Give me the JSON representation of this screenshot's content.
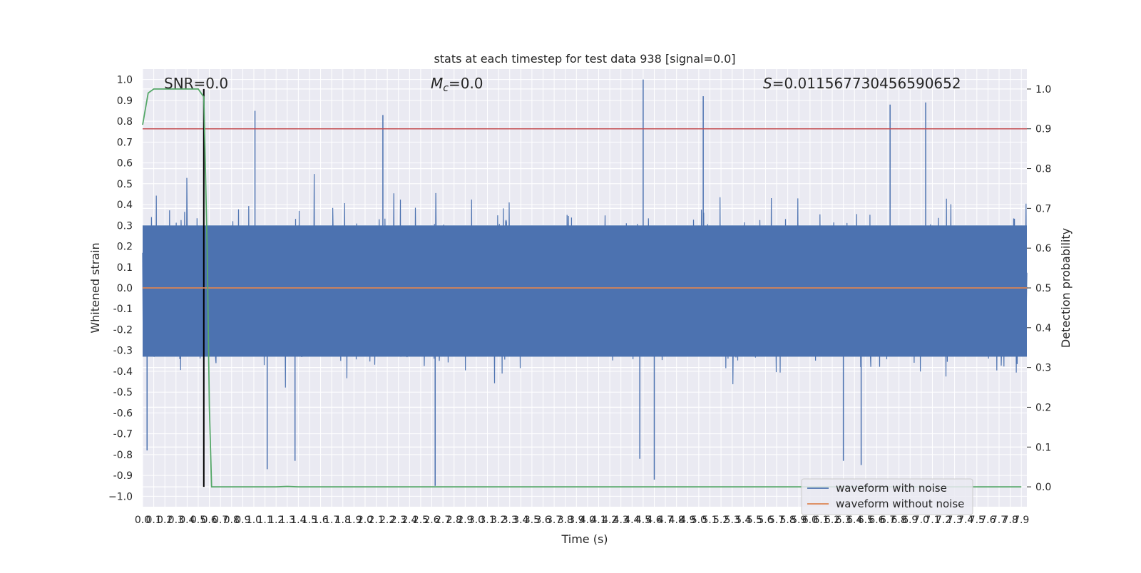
{
  "chart_data": {
    "type": "line",
    "title": "stats at each timestep for test data 938 [signal=0.0]",
    "xlabel": "Time (s)",
    "ylabel": "Whitened strain",
    "ylabel_right": "Detection probability",
    "xlim": [
      0.0,
      7.95
    ],
    "ylim": [
      -1.05,
      1.05
    ],
    "ylim_right": [
      -0.05,
      1.05
    ],
    "grid": true,
    "legend_position": "lower right",
    "annotations": {
      "snr": "SNR=0.0",
      "mc_symbol": "M",
      "mc_subscript": "c",
      "mc_value": "=0.0",
      "s_symbol": "S",
      "s_value": "=0.011567730456590652"
    },
    "x_ticks": [
      "0.0",
      "0.1",
      "0.2",
      "0.3",
      "0.4",
      "0.5",
      "0.6",
      "0.7",
      "0.8",
      "0.9",
      "1.0",
      "1.1",
      "1.2",
      "1.3",
      "1.4",
      "1.5",
      "1.6",
      "1.7",
      "1.8",
      "1.9",
      "2.0",
      "2.1",
      "2.2",
      "2.3",
      "2.4",
      "2.5",
      "2.6",
      "2.7",
      "2.8",
      "2.9",
      "3.0",
      "3.1",
      "3.2",
      "3.3",
      "3.4",
      "3.5",
      "3.6",
      "3.7",
      "3.8",
      "3.9",
      "4.0",
      "4.1",
      "4.2",
      "4.3",
      "4.4",
      "4.5",
      "4.6",
      "4.7",
      "4.8",
      "4.9",
      "5.0",
      "5.1",
      "5.2",
      "5.3",
      "5.4",
      "5.5",
      "5.6",
      "5.7",
      "5.8",
      "5.9",
      "6.0",
      "6.1",
      "6.2",
      "6.3",
      "6.4",
      "6.5",
      "6.6",
      "6.7",
      "6.8",
      "6.9",
      "7.0",
      "7.1",
      "7.2",
      "7.3",
      "7.4",
      "7.5",
      "7.6",
      "7.7",
      "7.8",
      "7.9"
    ],
    "y_ticks_left": [
      "1.0",
      "0.9",
      "0.8",
      "0.7",
      "0.6",
      "0.5",
      "0.4",
      "0.3",
      "0.2",
      "0.1",
      "0.0",
      "-0.1",
      "-0.2",
      "-0.3",
      "-0.4",
      "-0.5",
      "-0.6",
      "-0.7",
      "-0.8",
      "-0.9",
      "−1.0"
    ],
    "y_ticks_right": [
      "1.0",
      "0.9",
      "0.8",
      "0.7",
      "0.6",
      "0.5",
      "0.4",
      "0.3",
      "0.2",
      "0.1",
      "0.0"
    ],
    "series": [
      {
        "name": "waveform with noise",
        "axis": "left",
        "color": "#4c72b0",
        "description_range": [
          -0.95,
          1.0
        ],
        "peaks": [
          {
            "x": 1.01,
            "y": 0.85
          },
          {
            "x": 2.16,
            "y": 0.83
          },
          {
            "x": 4.5,
            "y": 1.0
          },
          {
            "x": 5.04,
            "y": 0.92
          },
          {
            "x": 6.72,
            "y": 0.88
          },
          {
            "x": 7.04,
            "y": 0.89
          },
          {
            "x": 2.63,
            "y": -0.95
          },
          {
            "x": 4.6,
            "y": -0.92
          },
          {
            "x": 0.04,
            "y": -0.78
          },
          {
            "x": 1.12,
            "y": -0.87
          },
          {
            "x": 1.37,
            "y": -0.83
          },
          {
            "x": 6.46,
            "y": -0.85
          },
          {
            "x": 4.47,
            "y": -0.82
          },
          {
            "x": 6.3,
            "y": -0.83
          }
        ]
      },
      {
        "name": "waveform without noise",
        "axis": "left",
        "color": "#dd8452",
        "x": [
          0.0,
          7.95
        ],
        "y": [
          0.0,
          0.0
        ]
      },
      {
        "name": "",
        "axis": "right",
        "color": "#55a868",
        "x": [
          0.0,
          0.05,
          0.1,
          0.2,
          0.3,
          0.4,
          0.5,
          0.55,
          0.58,
          0.6,
          0.62,
          1.2,
          1.3,
          1.4,
          7.9
        ],
        "y": [
          0.91,
          0.99,
          1.0,
          1.0,
          1.0,
          1.0,
          1.0,
          0.98,
          0.6,
          0.2,
          0.0,
          0.0,
          0.001,
          0.0,
          0.0
        ]
      }
    ],
    "reference_lines": [
      {
        "axis": "right",
        "orientation": "horizontal",
        "value": 0.9,
        "color": "#c44e52"
      },
      {
        "axis": "right",
        "orientation": "vertical",
        "value": 0.55,
        "from": 0.0,
        "to": 1.0,
        "color": "#000000"
      }
    ]
  }
}
